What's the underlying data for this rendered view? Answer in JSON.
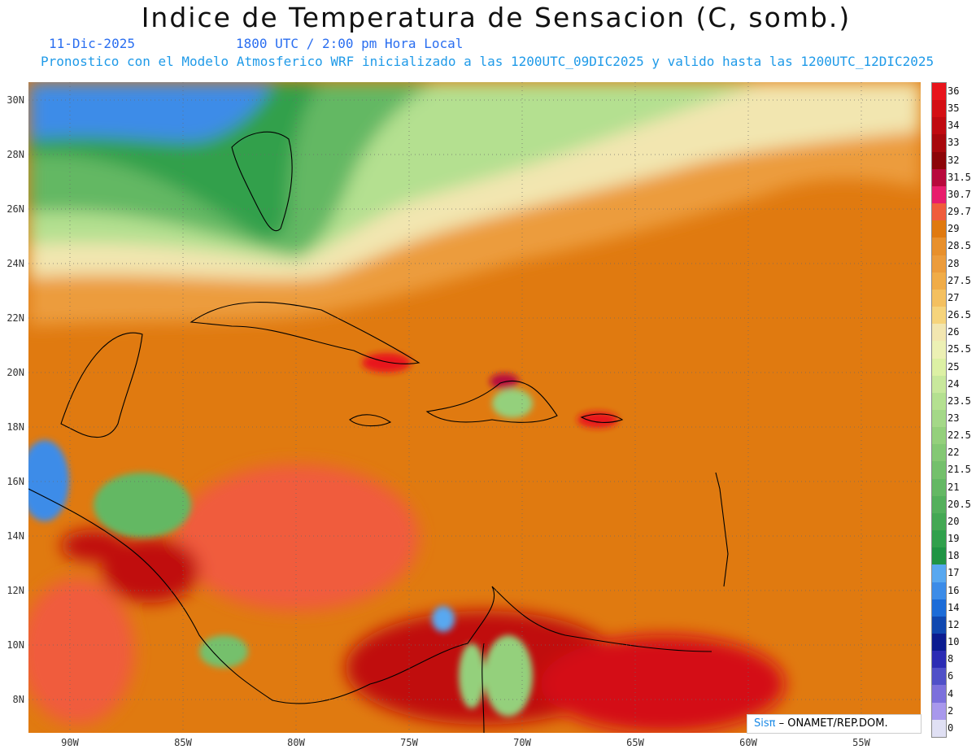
{
  "title": "Indice de Temperatura de Sensacion (C, somb.)",
  "subtitle": {
    "date": "11-Dic-2025",
    "time": "1800 UTC / 2:00 pm Hora Local",
    "model": "Pronostico con el Modelo Atmosferico WRF inicializado a las 1200UTC_09DIC2025 y valido hasta las  1200UTC_12DIC2025"
  },
  "axes": {
    "lat_labels": [
      "30N",
      "28N",
      "26N",
      "24N",
      "22N",
      "20N",
      "18N",
      "16N",
      "14N",
      "12N",
      "10N",
      "8N"
    ],
    "lon_labels": [
      "90W",
      "85W",
      "80W",
      "75W",
      "70W",
      "65W",
      "60W",
      "55W"
    ]
  },
  "colorbar": {
    "labels": [
      "36",
      "35",
      "34",
      "33",
      "32",
      "31.5",
      "30.7",
      "29.7",
      "29",
      "28.5",
      "28",
      "27.5",
      "27",
      "26.5",
      "26",
      "25.5",
      "25",
      "24",
      "23.5",
      "23",
      "22.5",
      "22",
      "21.5",
      "21",
      "20.5",
      "20",
      "19",
      "18",
      "17",
      "16",
      "14",
      "12",
      "10",
      "8",
      "6",
      "4",
      "2",
      "0"
    ],
    "colors": [
      "#e8141c",
      "#d40f14",
      "#c00a10",
      "#a8080c",
      "#8c0508",
      "#b8083c",
      "#e81c6c",
      "#f05c3c",
      "#e07a10",
      "#e8902c",
      "#ec9c3c",
      "#f0ac48",
      "#f4c060",
      "#f6d47c",
      "#f2e6b0",
      "#ecf0b4",
      "#dcf0a4",
      "#c8e89c",
      "#b4e090",
      "#a4d888",
      "#94d07c",
      "#84c874",
      "#74c06c",
      "#64b864",
      "#54b05c",
      "#44a854",
      "#30a04c",
      "#209444",
      "#58a8f0",
      "#3c8ce8",
      "#1c6cd8",
      "#1048b0",
      "#0c1c90",
      "#2c2cb4",
      "#5050c8",
      "#7c70dc",
      "#a898ec",
      "#e0e0f4"
    ]
  },
  "credit": {
    "sis": "Sis",
    "pi": "π",
    "text": " – ONAMET/REP.DOM."
  }
}
